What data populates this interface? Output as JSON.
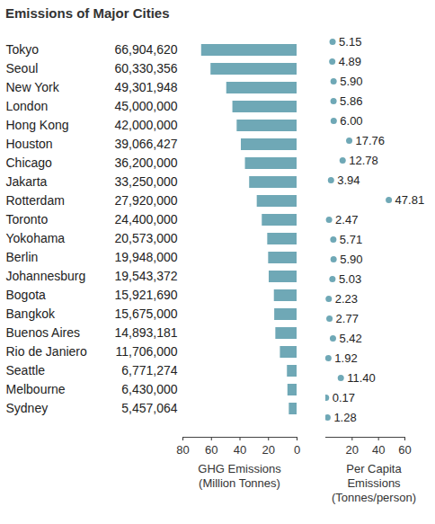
{
  "chart_data": [
    {
      "type": "bar",
      "title": "Emissions of Major Cities",
      "orientation": "horizontal",
      "categories": [
        "Tokyo",
        "Seoul",
        "New York",
        "London",
        "Hong Kong",
        "Houston",
        "Chicago",
        "Jakarta",
        "Rotterdam",
        "Toronto",
        "Yokohama",
        "Berlin",
        "Johannesburg",
        "Bogota",
        "Bangkok",
        "Buenos Aires",
        "Rio de Janiero",
        "Seattle",
        "Melbourne",
        "Sydney"
      ],
      "values": [
        66.90462,
        60.330356,
        49.301948,
        45,
        42,
        39.066427,
        36.2,
        33.25,
        27.92,
        24.4,
        20.573,
        19.948,
        19.543372,
        15.92169,
        15.675,
        14.893181,
        11.706,
        6.771274,
        6.43,
        5.457064
      ],
      "value_labels": [
        "66,904,620",
        "60,330,356",
        "49,301,948",
        "45,000,000",
        "42,000,000",
        "39,066,427",
        "36,200,000",
        "33,250,000",
        "27,920,000",
        "24,400,000",
        "20,573,000",
        "19,948,000",
        "19,543,372",
        "15,921,690",
        "15,675,000",
        "14,893,181",
        "11,706,000",
        "6,771,274",
        "6,430,000",
        "5,457,064"
      ],
      "data_labels": true,
      "color": "#6fa8b6",
      "xlim": [
        80,
        0
      ],
      "xticks": [
        80,
        60,
        40,
        20,
        0
      ],
      "x_label": "GHG Emissions (Million Tonnes)"
    },
    {
      "type": "scatter",
      "categories": [
        "Tokyo",
        "Seoul",
        "New York",
        "London",
        "Hong Kong",
        "Houston",
        "Chicago",
        "Jakarta",
        "Rotterdam",
        "Toronto",
        "Yokohama",
        "Berlin",
        "Johannesburg",
        "Bogota",
        "Bangkok",
        "Buenos Aires",
        "Rio de Janiero",
        "Seattle",
        "Melbourne",
        "Sydney"
      ],
      "values": [
        5.15,
        4.89,
        5.9,
        5.86,
        6,
        17.76,
        12.78,
        3.94,
        47.81,
        2.47,
        5.71,
        5.9,
        5.03,
        2.23,
        2.77,
        5.42,
        1.92,
        11.4,
        0.17,
        1.28
      ],
      "value_labels": [
        "5.15",
        "4.89",
        "5.90",
        "5.86",
        "6.00",
        "17.76",
        "12.78",
        "3.94",
        "47.81",
        "2.47",
        "5.71",
        "5.90",
        "5.03",
        "2.23",
        "2.77",
        "5.42",
        "1.92",
        "11.40",
        "0.17",
        "1.28"
      ],
      "data_labels": true,
      "color": "#6fa8b6",
      "xlim": [
        0,
        60
      ],
      "xticks": [
        20,
        40,
        60
      ],
      "x_label": "Per Capita Emissions (Tonnes/person)"
    }
  ]
}
